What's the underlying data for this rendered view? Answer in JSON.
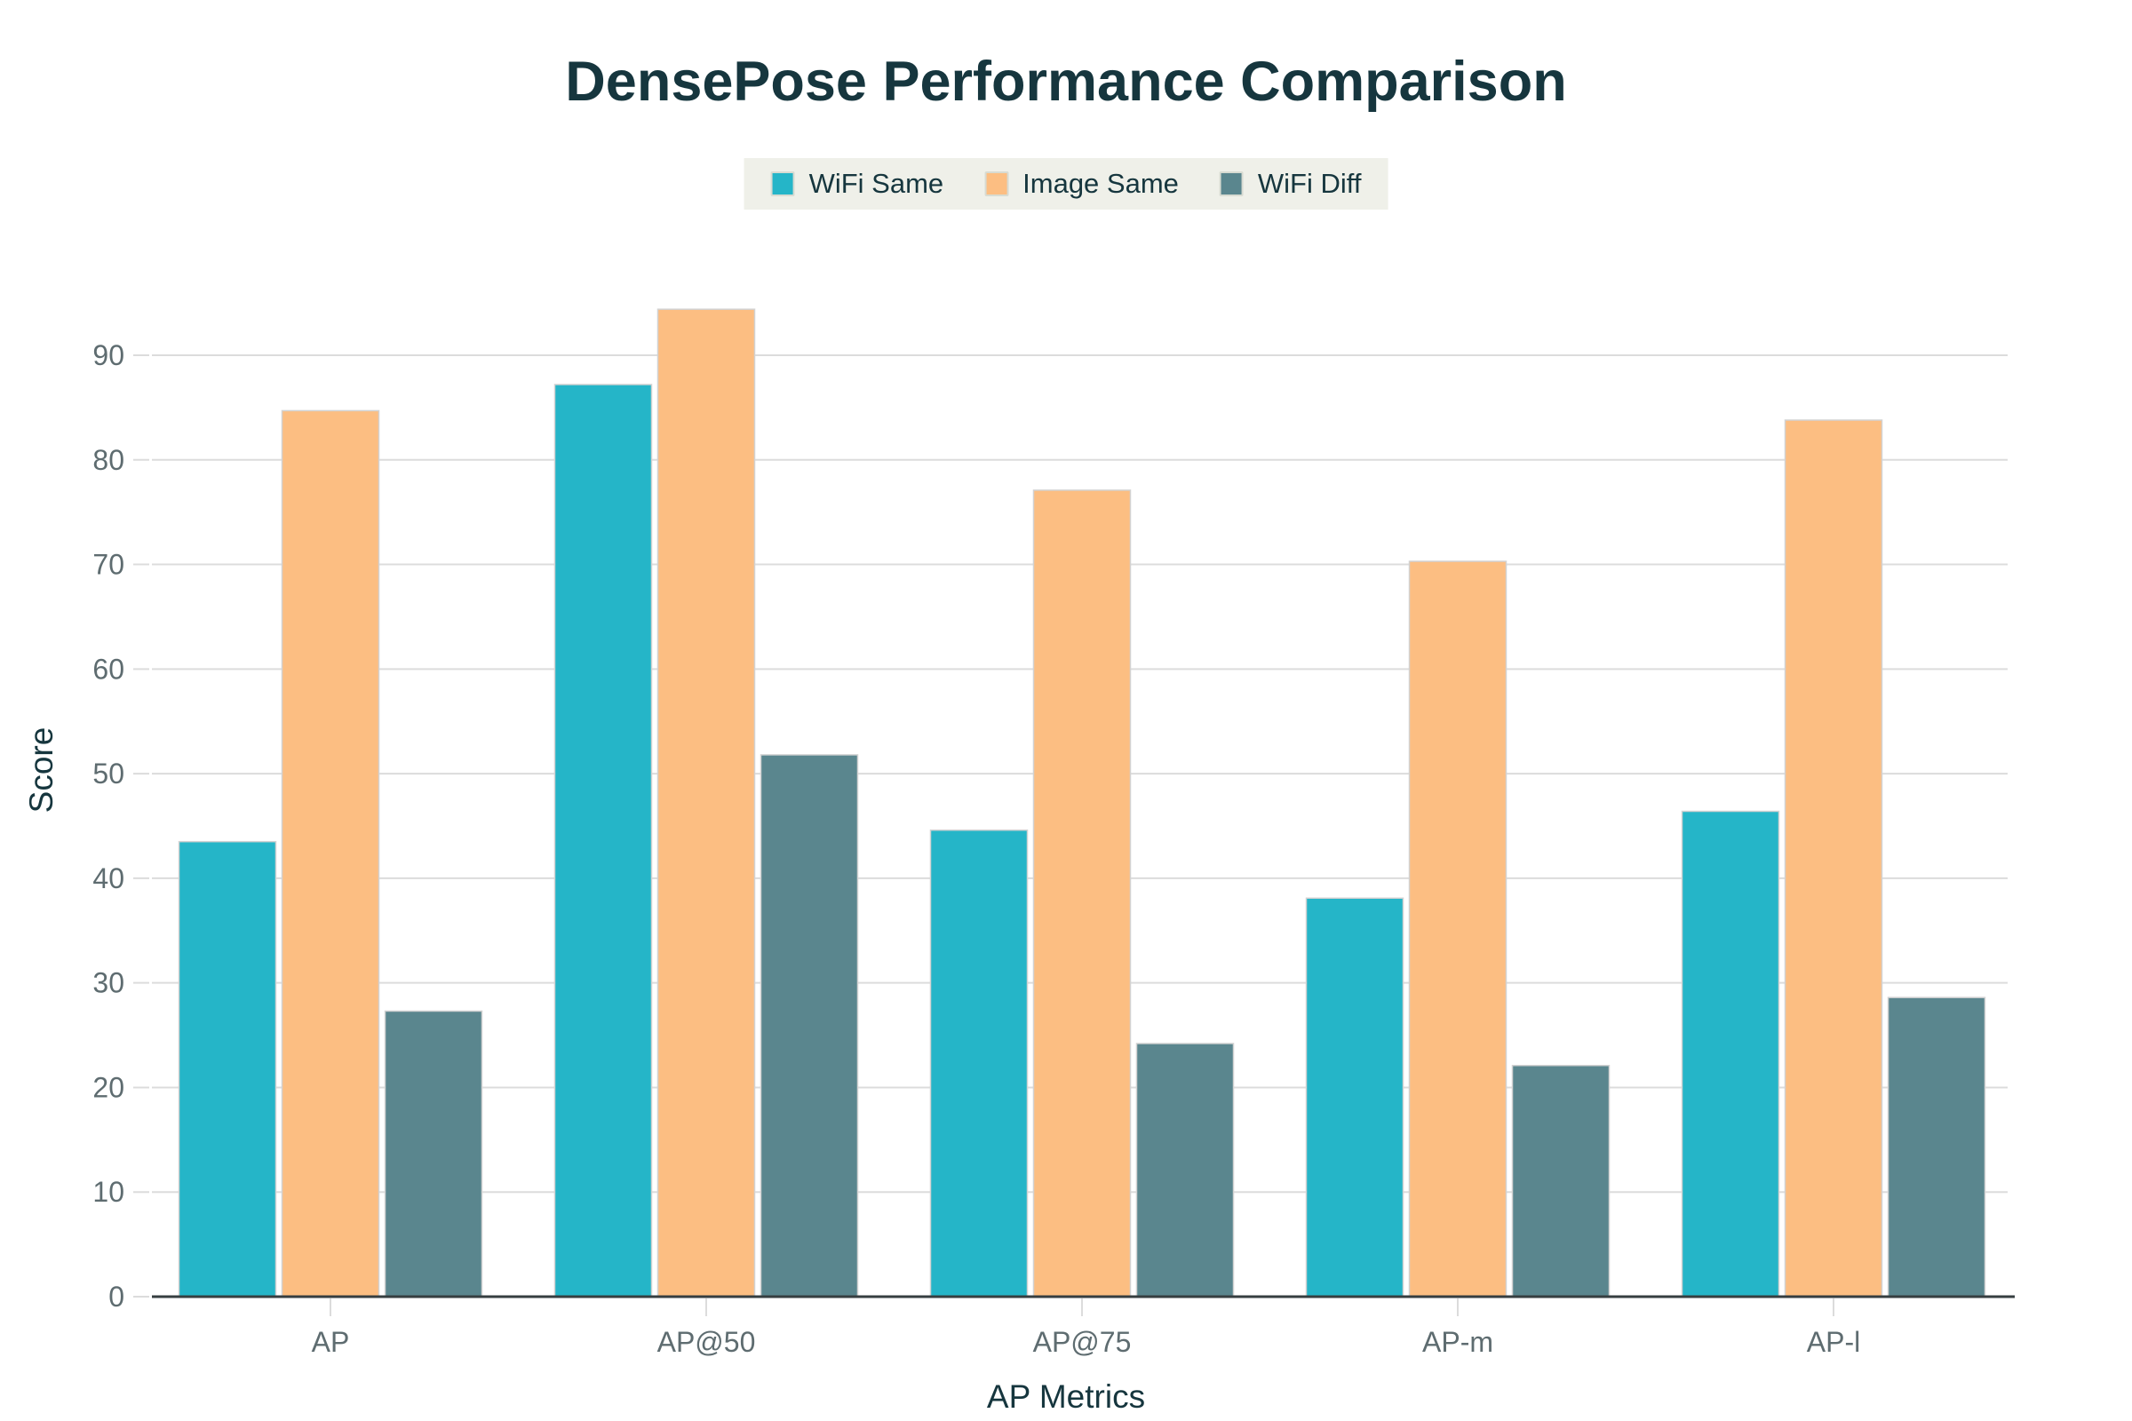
{
  "chart_data": {
    "type": "bar",
    "title": "DensePose Performance Comparison",
    "xlabel": "AP Metrics",
    "ylabel": "Score",
    "categories": [
      "AP",
      "AP@50",
      "AP@75",
      "AP-m",
      "AP-l"
    ],
    "series": [
      {
        "name": "WiFi Same",
        "color": "#25B5C8",
        "values": [
          43.5,
          87.2,
          44.6,
          38.1,
          46.4
        ]
      },
      {
        "name": "Image Same",
        "color": "#FCBE82",
        "values": [
          84.7,
          94.4,
          77.1,
          70.3,
          83.8
        ]
      },
      {
        "name": "WiFi Diff",
        "color": "#5A868E",
        "values": [
          27.3,
          51.8,
          24.2,
          22.1,
          28.6
        ]
      }
    ],
    "ylim": [
      0,
      96
    ],
    "yticks": [
      0,
      10,
      20,
      30,
      40,
      50,
      60,
      70,
      80,
      90
    ],
    "grid": true,
    "legend_position": "top-center"
  },
  "theme": {
    "background": "#FFFFFF",
    "title_color": "#16363E",
    "tick_color": "#5E6C70",
    "grid_color": "#DCDCDC",
    "axis_color": "#363E40",
    "bar_stroke": "#D2D2D2",
    "legend_bg": "#EFF0E9",
    "legend_border": "#D8DBD2"
  }
}
